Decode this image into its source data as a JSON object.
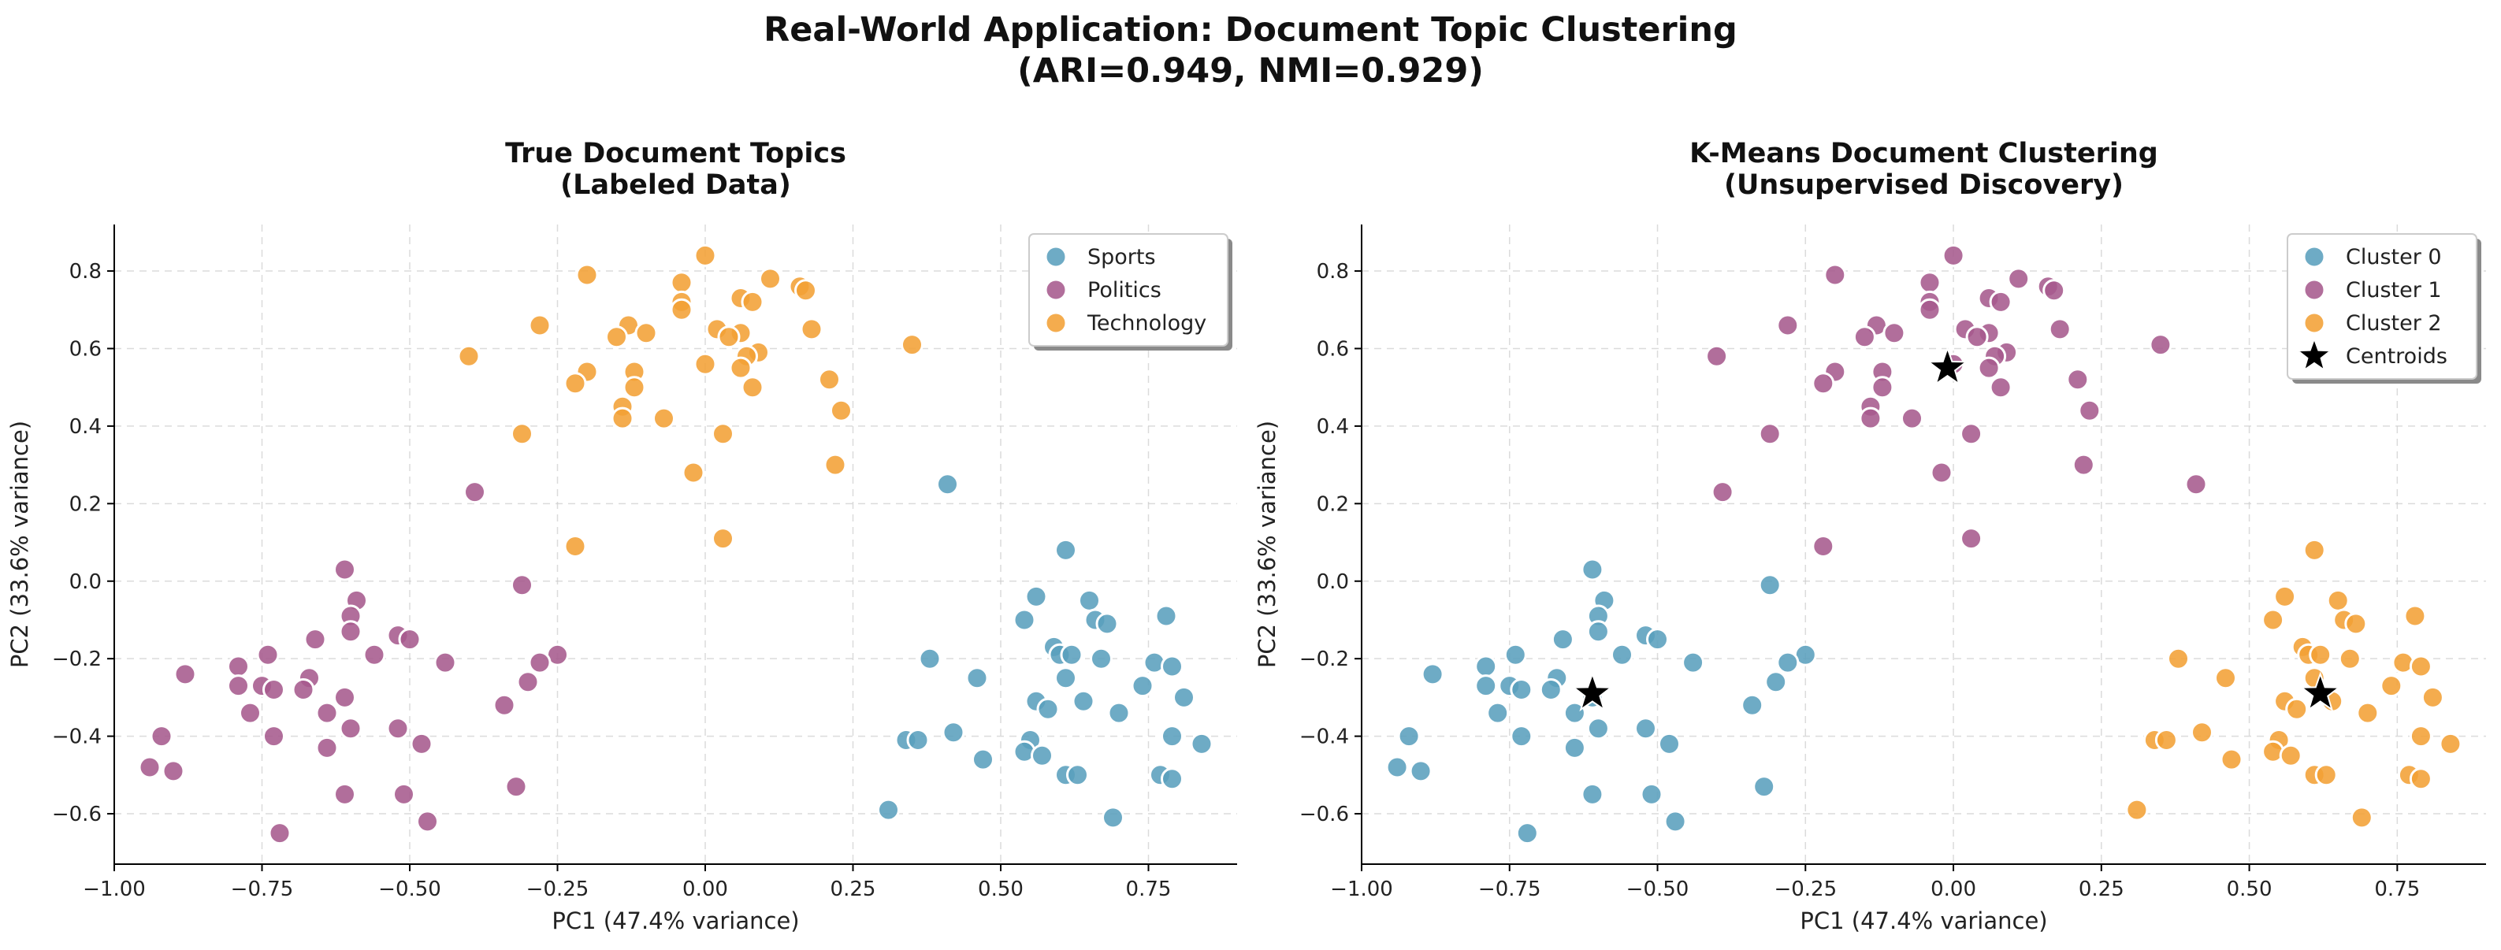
{
  "suptitle_line1": "Real-World Application: Document Topic Clustering",
  "suptitle_line2": "(ARI=0.949, NMI=0.929)",
  "colors": {
    "cat0": "#5a9fbd",
    "cat1": "#a65a8d",
    "cat2": "#f2a036",
    "centroid": "#000000"
  },
  "chart_data": [
    {
      "type": "scatter",
      "title_line1": "True Document Topics",
      "title_line2": "(Labeled Data)",
      "xlabel": "PC1 (47.4% variance)",
      "ylabel": "PC2 (33.6% variance)",
      "xlim": [
        -1.0,
        0.9
      ],
      "ylim": [
        -0.73,
        0.92
      ],
      "xticks": [
        -1.0,
        -0.75,
        -0.5,
        -0.25,
        0.0,
        0.25,
        0.5,
        0.75
      ],
      "xtick_labels": [
        "−1.00",
        "−0.75",
        "−0.50",
        "−0.25",
        "0.00",
        "0.25",
        "0.50",
        "0.75"
      ],
      "yticks": [
        -0.6,
        -0.4,
        -0.2,
        0.0,
        0.2,
        0.4,
        0.6,
        0.8
      ],
      "ytick_labels": [
        "−0.6",
        "−0.4",
        "−0.2",
        "0.0",
        "0.2",
        "0.4",
        "0.6",
        "0.8"
      ],
      "grid": true,
      "legend_position": "top-right",
      "series": [
        {
          "name": "Sports",
          "color": "#5a9fbd",
          "points": [
            [
              0.41,
              0.25
            ],
            [
              0.61,
              0.08
            ],
            [
              0.56,
              -0.04
            ],
            [
              0.65,
              -0.05
            ],
            [
              0.54,
              -0.1
            ],
            [
              0.66,
              -0.1
            ],
            [
              0.68,
              -0.11
            ],
            [
              0.78,
              -0.09
            ],
            [
              0.59,
              -0.17
            ],
            [
              0.6,
              -0.19
            ],
            [
              0.62,
              -0.19
            ],
            [
              0.67,
              -0.2
            ],
            [
              0.38,
              -0.2
            ],
            [
              0.76,
              -0.21
            ],
            [
              0.79,
              -0.22
            ],
            [
              0.61,
              -0.25
            ],
            [
              0.46,
              -0.25
            ],
            [
              0.74,
              -0.27
            ],
            [
              0.81,
              -0.3
            ],
            [
              0.56,
              -0.31
            ],
            [
              0.64,
              -0.31
            ],
            [
              0.58,
              -0.33
            ],
            [
              0.7,
              -0.34
            ],
            [
              0.42,
              -0.39
            ],
            [
              0.34,
              -0.41
            ],
            [
              0.36,
              -0.41
            ],
            [
              0.55,
              -0.41
            ],
            [
              0.79,
              -0.4
            ],
            [
              0.84,
              -0.42
            ],
            [
              0.54,
              -0.44
            ],
            [
              0.57,
              -0.45
            ],
            [
              0.47,
              -0.46
            ],
            [
              0.77,
              -0.5
            ],
            [
              0.79,
              -0.51
            ],
            [
              0.61,
              -0.5
            ],
            [
              0.63,
              -0.5
            ],
            [
              0.31,
              -0.59
            ],
            [
              0.69,
              -0.61
            ]
          ]
        },
        {
          "name": "Politics",
          "color": "#a65a8d",
          "points": [
            [
              -0.39,
              0.23
            ],
            [
              -0.61,
              0.03
            ],
            [
              -0.31,
              -0.01
            ],
            [
              -0.59,
              -0.05
            ],
            [
              -0.6,
              -0.09
            ],
            [
              -0.6,
              -0.13
            ],
            [
              -0.52,
              -0.14
            ],
            [
              -0.5,
              -0.15
            ],
            [
              -0.66,
              -0.15
            ],
            [
              -0.56,
              -0.19
            ],
            [
              -0.25,
              -0.19
            ],
            [
              -0.74,
              -0.19
            ],
            [
              -0.44,
              -0.21
            ],
            [
              -0.28,
              -0.21
            ],
            [
              -0.79,
              -0.22
            ],
            [
              -0.88,
              -0.24
            ],
            [
              -0.67,
              -0.25
            ],
            [
              -0.3,
              -0.26
            ],
            [
              -0.79,
              -0.27
            ],
            [
              -0.75,
              -0.27
            ],
            [
              -0.73,
              -0.28
            ],
            [
              -0.68,
              -0.28
            ],
            [
              -0.61,
              -0.3
            ],
            [
              -0.34,
              -0.32
            ],
            [
              -0.77,
              -0.34
            ],
            [
              -0.64,
              -0.34
            ],
            [
              -0.6,
              -0.38
            ],
            [
              -0.52,
              -0.38
            ],
            [
              -0.73,
              -0.4
            ],
            [
              -0.92,
              -0.4
            ],
            [
              -0.48,
              -0.42
            ],
            [
              -0.64,
              -0.43
            ],
            [
              -0.94,
              -0.48
            ],
            [
              -0.9,
              -0.49
            ],
            [
              -0.32,
              -0.53
            ],
            [
              -0.61,
              -0.55
            ],
            [
              -0.51,
              -0.55
            ],
            [
              -0.47,
              -0.62
            ],
            [
              -0.72,
              -0.65
            ]
          ]
        },
        {
          "name": "Technology",
          "color": "#f2a036",
          "points": [
            [
              0.0,
              0.84
            ],
            [
              -0.2,
              0.79
            ],
            [
              0.11,
              0.78
            ],
            [
              -0.04,
              0.77
            ],
            [
              0.16,
              0.76
            ],
            [
              0.06,
              0.73
            ],
            [
              0.08,
              0.72
            ],
            [
              -0.04,
              0.72
            ],
            [
              0.17,
              0.75
            ],
            [
              -0.04,
              0.7
            ],
            [
              0.02,
              0.65
            ],
            [
              0.18,
              0.65
            ],
            [
              -0.28,
              0.66
            ],
            [
              -0.13,
              0.66
            ],
            [
              -0.15,
              0.63
            ],
            [
              0.06,
              0.64
            ],
            [
              0.04,
              0.63
            ],
            [
              -0.1,
              0.64
            ],
            [
              0.09,
              0.59
            ],
            [
              0.35,
              0.61
            ],
            [
              0.07,
              0.58
            ],
            [
              0.0,
              0.56
            ],
            [
              -0.4,
              0.58
            ],
            [
              -0.12,
              0.54
            ],
            [
              -0.2,
              0.54
            ],
            [
              0.06,
              0.55
            ],
            [
              -0.22,
              0.51
            ],
            [
              -0.12,
              0.5
            ],
            [
              0.08,
              0.5
            ],
            [
              0.21,
              0.52
            ],
            [
              -0.14,
              0.45
            ],
            [
              -0.14,
              0.42
            ],
            [
              -0.07,
              0.42
            ],
            [
              0.23,
              0.44
            ],
            [
              -0.31,
              0.38
            ],
            [
              0.03,
              0.38
            ],
            [
              0.22,
              0.3
            ],
            [
              -0.02,
              0.28
            ],
            [
              0.03,
              0.11
            ],
            [
              -0.22,
              0.09
            ]
          ]
        }
      ]
    },
    {
      "type": "scatter",
      "title_line1": "K-Means Document Clustering",
      "title_line2": "(Unsupervised Discovery)",
      "xlabel": "PC1 (47.4% variance)",
      "ylabel": "PC2 (33.6% variance)",
      "xlim": [
        -1.0,
        0.9
      ],
      "ylim": [
        -0.73,
        0.92
      ],
      "xticks": [
        -1.0,
        -0.75,
        -0.5,
        -0.25,
        0.0,
        0.25,
        0.5,
        0.75
      ],
      "xtick_labels": [
        "−1.00",
        "−0.75",
        "−0.50",
        "−0.25",
        "0.00",
        "0.25",
        "0.50",
        "0.75"
      ],
      "yticks": [
        -0.6,
        -0.4,
        -0.2,
        0.0,
        0.2,
        0.4,
        0.6,
        0.8
      ],
      "ytick_labels": [
        "−0.6",
        "−0.4",
        "−0.2",
        "0.0",
        "0.2",
        "0.4",
        "0.6",
        "0.8"
      ],
      "grid": true,
      "legend_position": "top-right",
      "series": [
        {
          "name": "Cluster 0",
          "color": "#5a9fbd",
          "points": [
            [
              -0.61,
              0.03
            ],
            [
              -0.31,
              -0.01
            ],
            [
              -0.59,
              -0.05
            ],
            [
              -0.6,
              -0.09
            ],
            [
              -0.6,
              -0.13
            ],
            [
              -0.52,
              -0.14
            ],
            [
              -0.5,
              -0.15
            ],
            [
              -0.66,
              -0.15
            ],
            [
              -0.56,
              -0.19
            ],
            [
              -0.25,
              -0.19
            ],
            [
              -0.74,
              -0.19
            ],
            [
              -0.44,
              -0.21
            ],
            [
              -0.28,
              -0.21
            ],
            [
              -0.79,
              -0.22
            ],
            [
              -0.88,
              -0.24
            ],
            [
              -0.67,
              -0.25
            ],
            [
              -0.3,
              -0.26
            ],
            [
              -0.79,
              -0.27
            ],
            [
              -0.75,
              -0.27
            ],
            [
              -0.73,
              -0.28
            ],
            [
              -0.68,
              -0.28
            ],
            [
              -0.61,
              -0.3
            ],
            [
              -0.34,
              -0.32
            ],
            [
              -0.77,
              -0.34
            ],
            [
              -0.64,
              -0.34
            ],
            [
              -0.6,
              -0.38
            ],
            [
              -0.52,
              -0.38
            ],
            [
              -0.73,
              -0.4
            ],
            [
              -0.92,
              -0.4
            ],
            [
              -0.48,
              -0.42
            ],
            [
              -0.64,
              -0.43
            ],
            [
              -0.94,
              -0.48
            ],
            [
              -0.9,
              -0.49
            ],
            [
              -0.32,
              -0.53
            ],
            [
              -0.61,
              -0.55
            ],
            [
              -0.51,
              -0.55
            ],
            [
              -0.47,
              -0.62
            ],
            [
              -0.72,
              -0.65
            ]
          ]
        },
        {
          "name": "Cluster 1",
          "color": "#a65a8d",
          "points": [
            [
              0.0,
              0.84
            ],
            [
              -0.2,
              0.79
            ],
            [
              0.11,
              0.78
            ],
            [
              -0.04,
              0.77
            ],
            [
              0.16,
              0.76
            ],
            [
              0.06,
              0.73
            ],
            [
              0.08,
              0.72
            ],
            [
              -0.04,
              0.72
            ],
            [
              0.17,
              0.75
            ],
            [
              -0.04,
              0.7
            ],
            [
              0.02,
              0.65
            ],
            [
              0.18,
              0.65
            ],
            [
              -0.28,
              0.66
            ],
            [
              -0.13,
              0.66
            ],
            [
              -0.15,
              0.63
            ],
            [
              0.06,
              0.64
            ],
            [
              0.04,
              0.63
            ],
            [
              -0.1,
              0.64
            ],
            [
              0.09,
              0.59
            ],
            [
              0.35,
              0.61
            ],
            [
              0.07,
              0.58
            ],
            [
              0.0,
              0.56
            ],
            [
              -0.4,
              0.58
            ],
            [
              -0.12,
              0.54
            ],
            [
              -0.2,
              0.54
            ],
            [
              0.06,
              0.55
            ],
            [
              -0.22,
              0.51
            ],
            [
              -0.12,
              0.5
            ],
            [
              0.08,
              0.5
            ],
            [
              0.21,
              0.52
            ],
            [
              -0.14,
              0.45
            ],
            [
              -0.14,
              0.42
            ],
            [
              -0.07,
              0.42
            ],
            [
              0.23,
              0.44
            ],
            [
              -0.31,
              0.38
            ],
            [
              0.03,
              0.38
            ],
            [
              0.22,
              0.3
            ],
            [
              -0.02,
              0.28
            ],
            [
              0.41,
              0.25
            ],
            [
              0.03,
              0.11
            ],
            [
              -0.22,
              0.09
            ],
            [
              -0.39,
              0.23
            ]
          ]
        },
        {
          "name": "Cluster 2",
          "color": "#f2a036",
          "points": [
            [
              0.61,
              0.08
            ],
            [
              0.56,
              -0.04
            ],
            [
              0.65,
              -0.05
            ],
            [
              0.54,
              -0.1
            ],
            [
              0.66,
              -0.1
            ],
            [
              0.68,
              -0.11
            ],
            [
              0.78,
              -0.09
            ],
            [
              0.59,
              -0.17
            ],
            [
              0.6,
              -0.19
            ],
            [
              0.62,
              -0.19
            ],
            [
              0.67,
              -0.2
            ],
            [
              0.38,
              -0.2
            ],
            [
              0.76,
              -0.21
            ],
            [
              0.79,
              -0.22
            ],
            [
              0.61,
              -0.25
            ],
            [
              0.46,
              -0.25
            ],
            [
              0.74,
              -0.27
            ],
            [
              0.81,
              -0.3
            ],
            [
              0.56,
              -0.31
            ],
            [
              0.64,
              -0.31
            ],
            [
              0.58,
              -0.33
            ],
            [
              0.7,
              -0.34
            ],
            [
              0.42,
              -0.39
            ],
            [
              0.34,
              -0.41
            ],
            [
              0.36,
              -0.41
            ],
            [
              0.55,
              -0.41
            ],
            [
              0.79,
              -0.4
            ],
            [
              0.84,
              -0.42
            ],
            [
              0.54,
              -0.44
            ],
            [
              0.57,
              -0.45
            ],
            [
              0.47,
              -0.46
            ],
            [
              0.77,
              -0.5
            ],
            [
              0.79,
              -0.51
            ],
            [
              0.61,
              -0.5
            ],
            [
              0.63,
              -0.5
            ],
            [
              0.31,
              -0.59
            ],
            [
              0.69,
              -0.61
            ]
          ]
        }
      ],
      "centroids": {
        "name": "Centroids",
        "color": "#000000",
        "points": [
          [
            -0.61,
            -0.29
          ],
          [
            -0.01,
            0.55
          ],
          [
            0.62,
            -0.29
          ]
        ]
      }
    }
  ]
}
